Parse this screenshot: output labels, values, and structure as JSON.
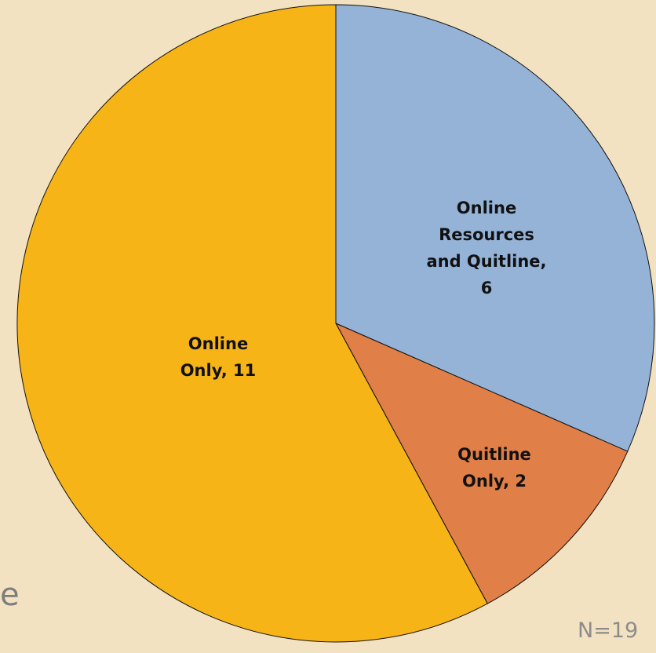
{
  "chart_data": {
    "type": "pie",
    "categories": [
      "Online Resources and Quitline",
      "Quitline Only",
      "Online Only"
    ],
    "values": [
      6,
      2,
      11
    ],
    "value_labels": [
      "Online Resources and Quitline, 6",
      "Quitline Only, 2",
      "Online Only, 11"
    ],
    "colors": [
      "#95b3d7",
      "#e07f47",
      "#f7b417"
    ],
    "annotations": [
      "N=19",
      "e"
    ]
  }
}
